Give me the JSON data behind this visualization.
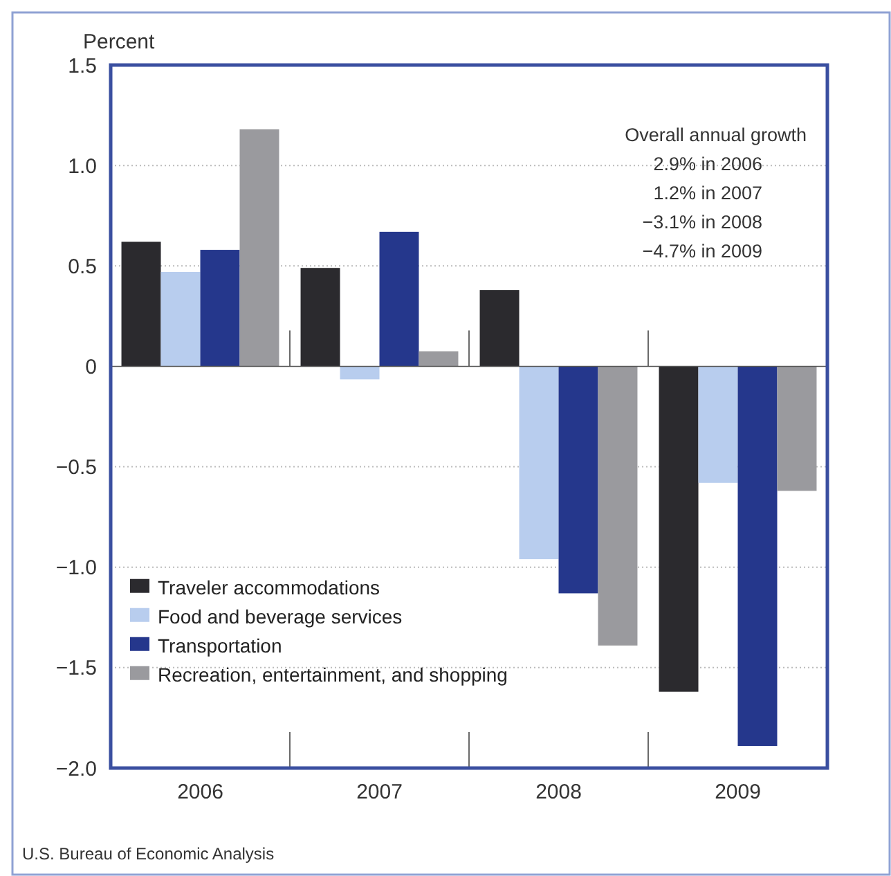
{
  "chart_data": {
    "type": "bar",
    "ylabel": "Percent",
    "categories": [
      "2006",
      "2007",
      "2008",
      "2009"
    ],
    "series": [
      {
        "name": "Traveler accommodations",
        "color": "#2b2a2e",
        "values": [
          0.62,
          0.49,
          0.38,
          -1.62
        ]
      },
      {
        "name": "Food and beverage services",
        "color": "#b8cdee",
        "values": [
          0.47,
          -0.065,
          -0.96,
          -0.58
        ]
      },
      {
        "name": "Transportation",
        "color": "#25378c",
        "values": [
          0.58,
          0.67,
          -1.13,
          -1.89
        ]
      },
      {
        "name": "Recreation, entertainment, and shopping",
        "color": "#9a9a9e",
        "values": [
          1.18,
          0.075,
          -1.39,
          -0.62
        ]
      }
    ],
    "ylim": [
      -2.0,
      1.5
    ],
    "yticks": [
      1.5,
      {
        "value": 1.0,
        "label": "1.0"
      },
      {
        "value": 0.5,
        "label": "0.5"
      },
      0,
      {
        "value": -0.5,
        "label": "−0.5"
      },
      {
        "value": -1.0,
        "label": "−1.0"
      },
      {
        "value": -1.5,
        "label": "−1.5"
      },
      {
        "value": -2.0,
        "label": "−2.0"
      }
    ],
    "grid": "y",
    "legend": "bottom left",
    "annotations": [
      "Overall annual growth",
      "2.9% in 2006",
      "1.2% in 2007",
      "−3.1% in 2008",
      "−4.7% in 2009",
      "U.S. Bureau of Economic Analysis"
    ]
  }
}
